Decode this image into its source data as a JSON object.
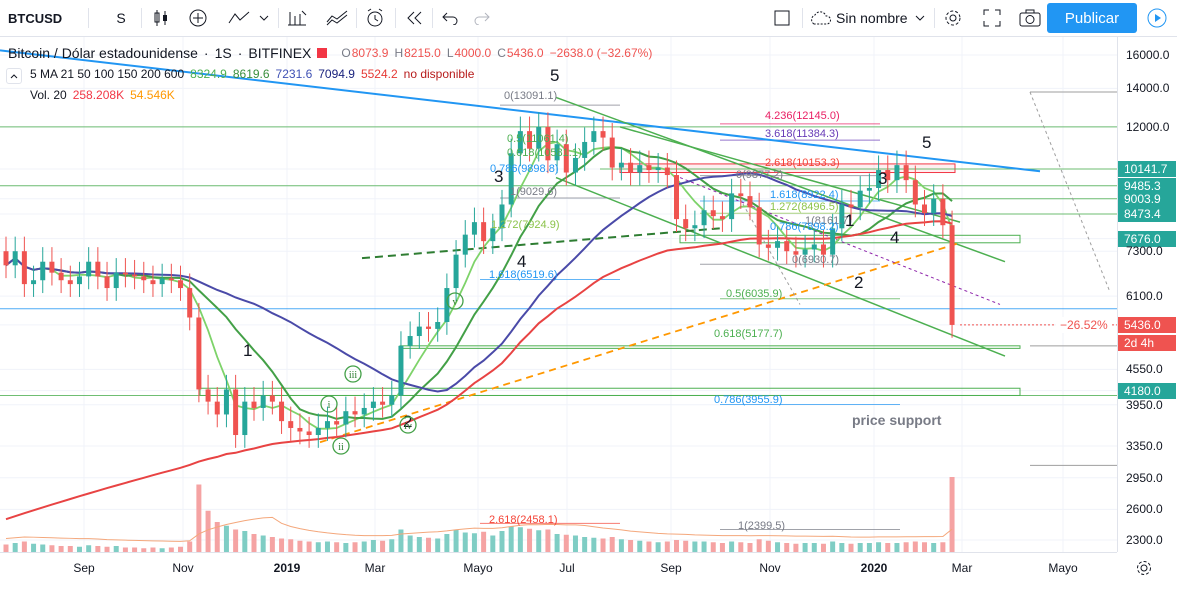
{
  "toolbar": {
    "symbol": "BTCUSD",
    "interval": "S",
    "layout_name": "Sin nombre",
    "publish_label": "Publicar"
  },
  "legend": {
    "title": "Bitcoin / Dólar estadounidense",
    "timeframe": "1S",
    "exchange": "BITFINEX",
    "ohlc": {
      "open_label": "O",
      "open": "8073.9",
      "high_label": "H",
      "high": "8215.0",
      "low_label": "L",
      "low": "4000.0",
      "close_label": "C",
      "close": "5436.0",
      "change": "−2638.0 (−32.67%)"
    },
    "ma_label": "5 MA 21 50 100 150 200 600",
    "ma_values": [
      {
        "value": "8324.9",
        "color": "#4caf50"
      },
      {
        "value": "8619.6",
        "color": "#388e3c"
      },
      {
        "value": "7231.6",
        "color": "#3f51b5"
      },
      {
        "value": "7094.9",
        "color": "#1a237e"
      },
      {
        "value": "5524.2",
        "color": "#e53935"
      },
      {
        "value": "no disponible",
        "color": "#b71c1c"
      }
    ],
    "vol_label": "Vol. 20",
    "vol_values": [
      {
        "value": "258.208K",
        "color": "#f23645"
      },
      {
        "value": "54.546K",
        "color": "#ff9800"
      }
    ]
  },
  "colors": {
    "up": "#26a69a",
    "down": "#ef5350",
    "ma_fast": "#7ed36a",
    "ma_mid": "#43a047",
    "ma_slow": "#4a4aa8",
    "ma_long": "#e84343",
    "trendline": "#2196f3"
  },
  "chart_data": {
    "type": "candlestick",
    "price_axis": {
      "scale": "log",
      "ticks": [
        "16000.0",
        "14000.0",
        "12000.0",
        "10141.7",
        "9485.3",
        "9003.9",
        "8473.4",
        "7676.0",
        "7300.0",
        "6100.0",
        "5436.0",
        "4550.0",
        "4180.0",
        "3950.0",
        "3350.0",
        "2950.0",
        "2600.0",
        "2300.0"
      ],
      "highlighted": [
        {
          "value": "10141.7",
          "color": "#26a69a"
        },
        {
          "value": "9485.3",
          "color": "#26a69a"
        },
        {
          "value": "9003.9",
          "color": "#26a69a"
        },
        {
          "value": "8473.4",
          "color": "#26a69a"
        },
        {
          "value": "7676.0",
          "color": "#26a69a"
        },
        {
          "value": "5436.0",
          "color": "#ef5350"
        },
        {
          "value": "4180.0",
          "color": "#26a69a"
        }
      ],
      "current_change": "−26.52%",
      "countdown": "2d 4h"
    },
    "time_axis": [
      "Sep",
      "Nov",
      "2019",
      "Mar",
      "Mayo",
      "Jul",
      "Sep",
      "Nov",
      "2020",
      "Mar",
      "Mayo"
    ],
    "fib_labels": [
      {
        "text": "0(13091.1)",
        "color": "#787b86"
      },
      {
        "text": "0.5(11061.4)",
        "color": "#4caf50"
      },
      {
        "text": "0.618(10581.1)",
        "color": "#4caf50"
      },
      {
        "text": "0.786(9898.8)",
        "color": "#2196f3"
      },
      {
        "text": "1(9029.6)",
        "color": "#787b86"
      },
      {
        "text": "1.272(7924.9)",
        "color": "#8bc34a"
      },
      {
        "text": "1.618(6519.6)",
        "color": "#2196f3"
      },
      {
        "text": "4.236(12145.0)",
        "color": "#e91e63"
      },
      {
        "text": "3.618(11384.3)",
        "color": "#673ab7"
      },
      {
        "text": "2.618(10153.3)",
        "color": "#f44336"
      },
      {
        "text": "0(9877.2)",
        "color": "#787b86"
      },
      {
        "text": "1.618(8922.4)",
        "color": "#2196f3"
      },
      {
        "text": "1.272(8496.5)",
        "color": "#8bc34a"
      },
      {
        "text": "1(8161.7)",
        "color": "#787b86"
      },
      {
        "text": "0.786(7898.2)",
        "color": "#2196f3"
      },
      {
        "text": "0(6930.7)",
        "color": "#787b86"
      },
      {
        "text": "0.5(6035.9)",
        "color": "#4caf50"
      },
      {
        "text": "0.618(5177.7)",
        "color": "#4caf50"
      },
      {
        "text": "0.786(3955.9)",
        "color": "#2196f3"
      },
      {
        "text": "2.618(2458.1)",
        "color": "#f44336"
      },
      {
        "text": "1(2399.5)",
        "color": "#787b86"
      }
    ],
    "wave_labels": [
      "1",
      "2",
      "3",
      "4",
      "5",
      "1",
      "2",
      "3",
      "4",
      "5",
      "i",
      "ii",
      "iii",
      "iv",
      "v"
    ],
    "annotations": [
      "price support"
    ],
    "candles": [
      {
        "o": 7300,
        "c": 6900
      },
      {
        "o": 6900,
        "c": 7300
      },
      {
        "o": 7300,
        "c": 6400
      },
      {
        "o": 6400,
        "c": 6500
      },
      {
        "o": 6500,
        "c": 7000
      },
      {
        "o": 7000,
        "c": 6700
      },
      {
        "o": 6700,
        "c": 6500
      },
      {
        "o": 6500,
        "c": 6400
      },
      {
        "o": 6400,
        "c": 6600
      },
      {
        "o": 6600,
        "c": 7000
      },
      {
        "o": 7000,
        "c": 6600
      },
      {
        "o": 6600,
        "c": 6300
      },
      {
        "o": 6300,
        "c": 6700
      },
      {
        "o": 6700,
        "c": 6650
      },
      {
        "o": 6650,
        "c": 6600
      },
      {
        "o": 6600,
        "c": 6500
      },
      {
        "o": 6500,
        "c": 6400
      },
      {
        "o": 6400,
        "c": 6550
      },
      {
        "o": 6550,
        "c": 6500
      },
      {
        "o": 6500,
        "c": 6300
      },
      {
        "o": 6300,
        "c": 5600
      },
      {
        "o": 5600,
        "c": 4200
      },
      {
        "o": 4200,
        "c": 4000
      },
      {
        "o": 4000,
        "c": 3800
      },
      {
        "o": 3800,
        "c": 4200
      },
      {
        "o": 4200,
        "c": 3500
      },
      {
        "o": 3500,
        "c": 4000
      },
      {
        "o": 4000,
        "c": 3900
      },
      {
        "o": 3900,
        "c": 4100
      },
      {
        "o": 4100,
        "c": 4000
      },
      {
        "o": 4000,
        "c": 3700
      },
      {
        "o": 3700,
        "c": 3600
      },
      {
        "o": 3600,
        "c": 3550
      },
      {
        "o": 3550,
        "c": 3500
      },
      {
        "o": 3500,
        "c": 3600
      },
      {
        "o": 3600,
        "c": 3700
      },
      {
        "o": 3700,
        "c": 3650
      },
      {
        "o": 3650,
        "c": 3850
      },
      {
        "o": 3850,
        "c": 3800
      },
      {
        "o": 3800,
        "c": 3900
      },
      {
        "o": 3900,
        "c": 4000
      },
      {
        "o": 4000,
        "c": 3950
      },
      {
        "o": 3950,
        "c": 4100
      },
      {
        "o": 4100,
        "c": 5000
      },
      {
        "o": 5000,
        "c": 5200
      },
      {
        "o": 5200,
        "c": 5400
      },
      {
        "o": 5400,
        "c": 5350
      },
      {
        "o": 5350,
        "c": 5500
      },
      {
        "o": 5500,
        "c": 6300
      },
      {
        "o": 6300,
        "c": 7200
      },
      {
        "o": 7200,
        "c": 7800
      },
      {
        "o": 7800,
        "c": 8200
      },
      {
        "o": 8200,
        "c": 7600
      },
      {
        "o": 7600,
        "c": 8000
      },
      {
        "o": 8000,
        "c": 8800
      },
      {
        "o": 8800,
        "c": 10800
      },
      {
        "o": 10800,
        "c": 11800
      },
      {
        "o": 11800,
        "c": 11000
      },
      {
        "o": 11000,
        "c": 12000
      },
      {
        "o": 12000,
        "c": 10500
      },
      {
        "o": 10500,
        "c": 11200
      },
      {
        "o": 11200,
        "c": 10000
      },
      {
        "o": 10000,
        "c": 10600
      },
      {
        "o": 10600,
        "c": 11300
      },
      {
        "o": 11300,
        "c": 11800
      },
      {
        "o": 11800,
        "c": 11500
      },
      {
        "o": 11500,
        "c": 10200
      },
      {
        "o": 10200,
        "c": 10400
      },
      {
        "o": 10400,
        "c": 10000
      },
      {
        "o": 10000,
        "c": 10300
      },
      {
        "o": 10300,
        "c": 10100
      },
      {
        "o": 10100,
        "c": 10200
      },
      {
        "o": 10200,
        "c": 9900
      },
      {
        "o": 9900,
        "c": 8300
      },
      {
        "o": 8300,
        "c": 8000
      },
      {
        "o": 8000,
        "c": 8100
      },
      {
        "o": 8100,
        "c": 8600
      },
      {
        "o": 8600,
        "c": 8400
      },
      {
        "o": 8400,
        "c": 8300
      },
      {
        "o": 8300,
        "c": 9200
      },
      {
        "o": 9200,
        "c": 9100
      },
      {
        "o": 9100,
        "c": 8700
      },
      {
        "o": 8700,
        "c": 7500
      },
      {
        "o": 7500,
        "c": 7400
      },
      {
        "o": 7400,
        "c": 7600
      },
      {
        "o": 7600,
        "c": 7300
      },
      {
        "o": 7300,
        "c": 7200
      },
      {
        "o": 7200,
        "c": 7350
      },
      {
        "o": 7350,
        "c": 7500
      },
      {
        "o": 7500,
        "c": 7200
      },
      {
        "o": 7200,
        "c": 8000
      },
      {
        "o": 8000,
        "c": 8800
      },
      {
        "o": 8800,
        "c": 8700
      },
      {
        "o": 8700,
        "c": 9300
      },
      {
        "o": 9300,
        "c": 9400
      },
      {
        "o": 9400,
        "c": 10100
      },
      {
        "o": 10100,
        "c": 9700
      },
      {
        "o": 9700,
        "c": 10300
      },
      {
        "o": 10300,
        "c": 9700
      },
      {
        "o": 9700,
        "c": 8800
      },
      {
        "o": 8800,
        "c": 8500
      },
      {
        "o": 8500,
        "c": 9000
      },
      {
        "o": 9000,
        "c": 8100
      },
      {
        "o": 8100,
        "c": 5436
      }
    ],
    "volume": [
      {
        "v": 0.1
      },
      {
        "v": 0.12
      },
      {
        "v": 0.14
      },
      {
        "v": 0.11
      },
      {
        "v": 0.1
      },
      {
        "v": 0.09
      },
      {
        "v": 0.08
      },
      {
        "v": 0.08
      },
      {
        "v": 0.07
      },
      {
        "v": 0.09
      },
      {
        "v": 0.08
      },
      {
        "v": 0.07
      },
      {
        "v": 0.08
      },
      {
        "v": 0.06
      },
      {
        "v": 0.06
      },
      {
        "v": 0.05
      },
      {
        "v": 0.06
      },
      {
        "v": 0.05
      },
      {
        "v": 0.06
      },
      {
        "v": 0.07
      },
      {
        "v": 0.14
      },
      {
        "v": 0.9
      },
      {
        "v": 0.55
      },
      {
        "v": 0.4
      },
      {
        "v": 0.35
      },
      {
        "v": 0.3
      },
      {
        "v": 0.28
      },
      {
        "v": 0.24
      },
      {
        "v": 0.22
      },
      {
        "v": 0.2
      },
      {
        "v": 0.18
      },
      {
        "v": 0.17
      },
      {
        "v": 0.15
      },
      {
        "v": 0.14
      },
      {
        "v": 0.13
      },
      {
        "v": 0.14
      },
      {
        "v": 0.13
      },
      {
        "v": 0.12
      },
      {
        "v": 0.13
      },
      {
        "v": 0.14
      },
      {
        "v": 0.16
      },
      {
        "v": 0.15
      },
      {
        "v": 0.17
      },
      {
        "v": 0.3
      },
      {
        "v": 0.22
      },
      {
        "v": 0.2
      },
      {
        "v": 0.19
      },
      {
        "v": 0.18
      },
      {
        "v": 0.24
      },
      {
        "v": 0.3
      },
      {
        "v": 0.26
      },
      {
        "v": 0.25
      },
      {
        "v": 0.27
      },
      {
        "v": 0.22
      },
      {
        "v": 0.28
      },
      {
        "v": 0.34
      },
      {
        "v": 0.33
      },
      {
        "v": 0.31
      },
      {
        "v": 0.29
      },
      {
        "v": 0.3
      },
      {
        "v": 0.24
      },
      {
        "v": 0.23
      },
      {
        "v": 0.22
      },
      {
        "v": 0.2
      },
      {
        "v": 0.19
      },
      {
        "v": 0.18
      },
      {
        "v": 0.2
      },
      {
        "v": 0.17
      },
      {
        "v": 0.16
      },
      {
        "v": 0.15
      },
      {
        "v": 0.14
      },
      {
        "v": 0.13
      },
      {
        "v": 0.14
      },
      {
        "v": 0.16
      },
      {
        "v": 0.15
      },
      {
        "v": 0.14
      },
      {
        "v": 0.14
      },
      {
        "v": 0.13
      },
      {
        "v": 0.12
      },
      {
        "v": 0.14
      },
      {
        "v": 0.13
      },
      {
        "v": 0.12
      },
      {
        "v": 0.17
      },
      {
        "v": 0.15
      },
      {
        "v": 0.13
      },
      {
        "v": 0.12
      },
      {
        "v": 0.11
      },
      {
        "v": 0.12
      },
      {
        "v": 0.12
      },
      {
        "v": 0.11
      },
      {
        "v": 0.14
      },
      {
        "v": 0.12
      },
      {
        "v": 0.11
      },
      {
        "v": 0.12
      },
      {
        "v": 0.12
      },
      {
        "v": 0.13
      },
      {
        "v": 0.12
      },
      {
        "v": 0.12
      },
      {
        "v": 0.13
      },
      {
        "v": 0.14
      },
      {
        "v": 0.13
      },
      {
        "v": 0.12
      },
      {
        "v": 0.13
      },
      {
        "v": 1.0
      }
    ]
  }
}
